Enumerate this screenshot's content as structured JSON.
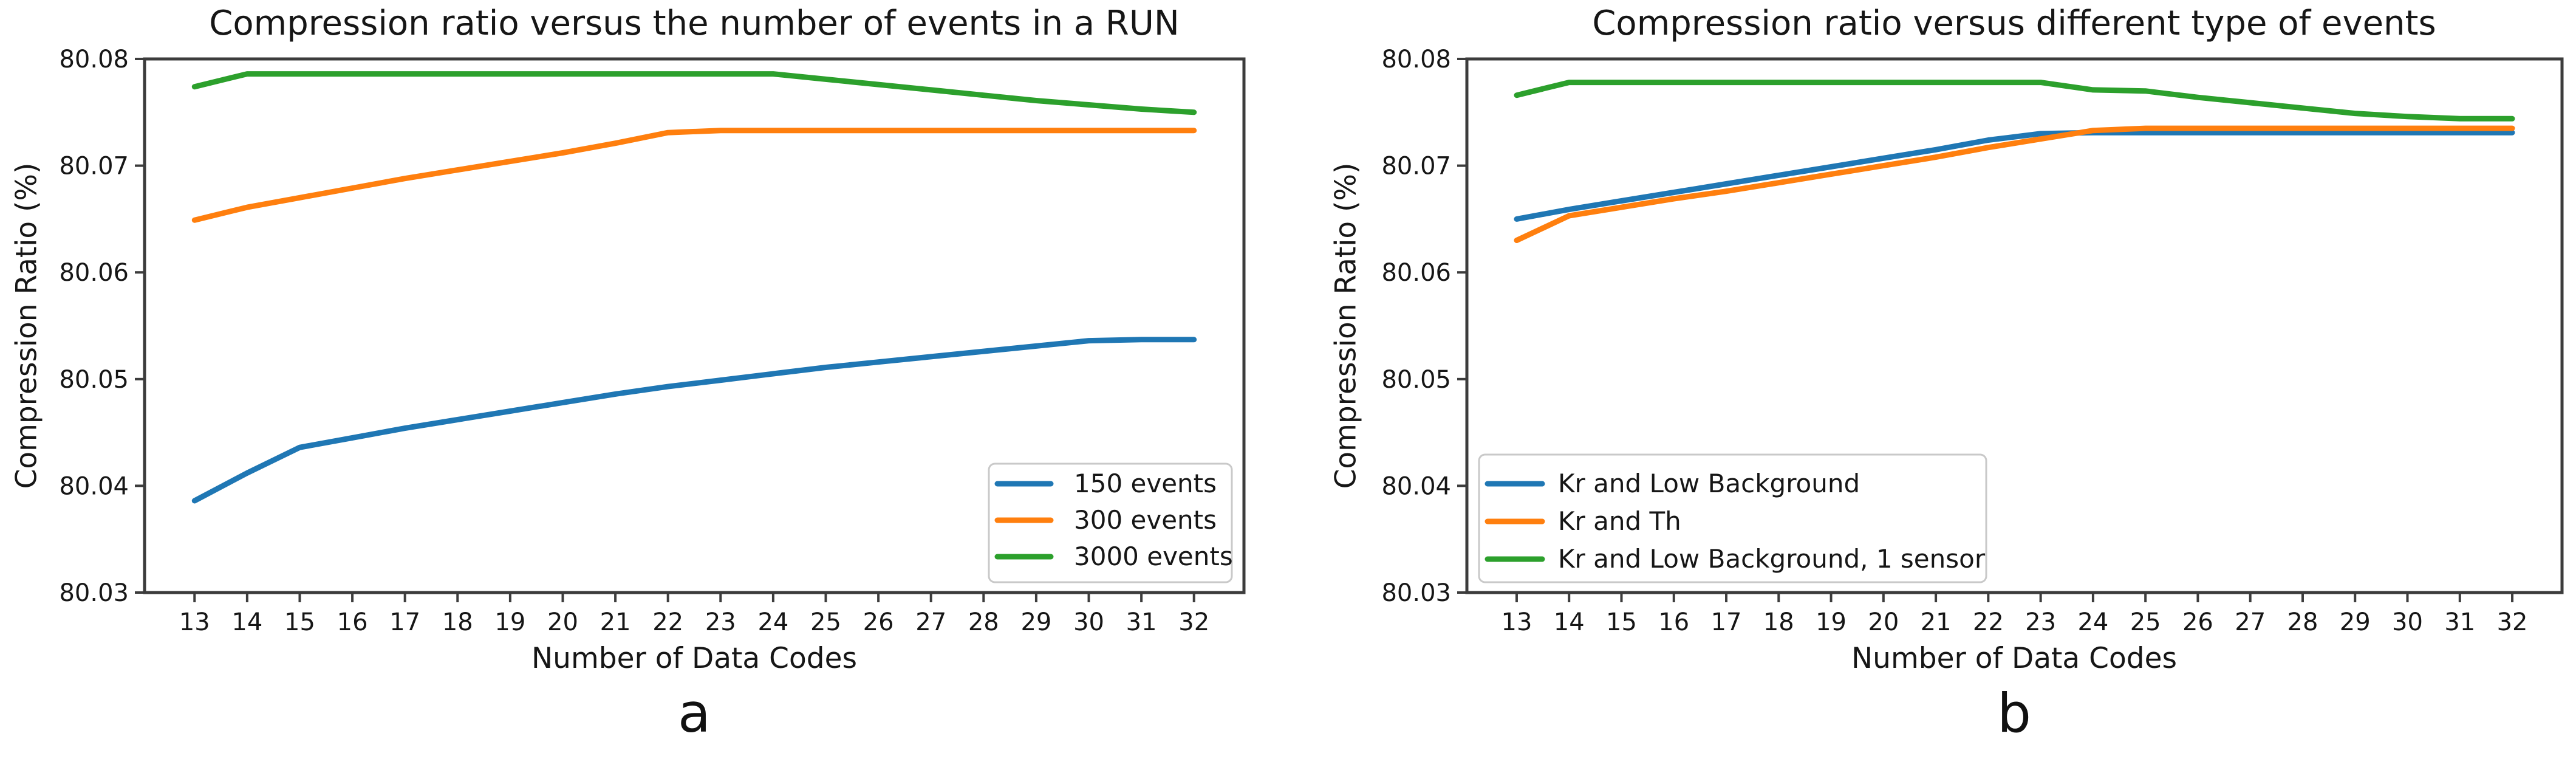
{
  "figure": {
    "background": "#ffffff",
    "text_color": "#161616",
    "axis_color": "#3c3c3c",
    "legend_border_color": "#c9c9c9",
    "accent_blue": "#1f77b4",
    "accent_orange": "#ff7f0e",
    "accent_green": "#2ca02c"
  },
  "chart_data": [
    {
      "id": "a",
      "type": "line",
      "title": "Compression ratio versus the number of events in a RUN",
      "xlabel": "Number of Data Codes",
      "ylabel": "Compression Ratio (%)",
      "caption": "a",
      "grid": false,
      "legend_position": "lower right",
      "x": [
        13,
        14,
        15,
        16,
        17,
        18,
        19,
        20,
        21,
        22,
        23,
        24,
        25,
        26,
        27,
        28,
        29,
        30,
        31,
        32
      ],
      "xlim": [
        12.05,
        32.95
      ],
      "ylim": [
        80.03,
        80.08
      ],
      "yticks": [
        80.03,
        80.04,
        80.05,
        80.06,
        80.07,
        80.08
      ],
      "series": [
        {
          "name": "150 events",
          "color": "#1f77b4",
          "values": [
            80.0386,
            80.0412,
            80.0436,
            80.0445,
            80.0454,
            80.0462,
            80.047,
            80.0478,
            80.0486,
            80.0493,
            80.0499,
            80.0505,
            80.0511,
            80.0516,
            80.0521,
            80.0526,
            80.0531,
            80.0536,
            80.0537,
            80.0537
          ]
        },
        {
          "name": "300 events",
          "color": "#ff7f0e",
          "values": [
            80.0649,
            80.0661,
            80.067,
            80.0679,
            80.0688,
            80.0696,
            80.0704,
            80.0712,
            80.0721,
            80.0731,
            80.0733,
            80.0733,
            80.0733,
            80.0733,
            80.0733,
            80.0733,
            80.0733,
            80.0733,
            80.0733,
            80.0733
          ]
        },
        {
          "name": "3000 events",
          "color": "#2ca02c",
          "values": [
            80.0774,
            80.0786,
            80.0786,
            80.0786,
            80.0786,
            80.0786,
            80.0786,
            80.0786,
            80.0786,
            80.0786,
            80.0786,
            80.0786,
            80.0781,
            80.0776,
            80.0771,
            80.0766,
            80.0761,
            80.0757,
            80.0753,
            80.075
          ]
        }
      ]
    },
    {
      "id": "b",
      "type": "line",
      "title": "Compression ratio versus different type of events",
      "xlabel": "Number of Data Codes",
      "ylabel": "Compression Ratio (%)",
      "caption": "b",
      "grid": false,
      "legend_position": "lower left",
      "x": [
        13,
        14,
        15,
        16,
        17,
        18,
        19,
        20,
        21,
        22,
        23,
        24,
        25,
        26,
        27,
        28,
        29,
        30,
        31,
        32
      ],
      "xlim": [
        12.05,
        32.95
      ],
      "ylim": [
        80.03,
        80.08
      ],
      "yticks": [
        80.03,
        80.04,
        80.05,
        80.06,
        80.07,
        80.08
      ],
      "series": [
        {
          "name": "Kr and Low Background",
          "color": "#1f77b4",
          "values": [
            80.065,
            80.0659,
            80.0667,
            80.0675,
            80.0683,
            80.0691,
            80.0699,
            80.0707,
            80.0715,
            80.0724,
            80.073,
            80.0731,
            80.0731,
            80.0731,
            80.0731,
            80.0731,
            80.0731,
            80.0731,
            80.0731,
            80.0731
          ]
        },
        {
          "name": "Kr and Th",
          "color": "#ff7f0e",
          "values": [
            80.063,
            80.0653,
            80.0661,
            80.0669,
            80.0676,
            80.0684,
            80.0692,
            80.07,
            80.0708,
            80.0717,
            80.0725,
            80.0733,
            80.0735,
            80.0735,
            80.0735,
            80.0735,
            80.0735,
            80.0735,
            80.0735,
            80.0735
          ]
        },
        {
          "name": "Kr and Low Background, 1 sensor",
          "color": "#2ca02c",
          "values": [
            80.0766,
            80.0778,
            80.0778,
            80.0778,
            80.0778,
            80.0778,
            80.0778,
            80.0778,
            80.0778,
            80.0778,
            80.0778,
            80.0771,
            80.077,
            80.0764,
            80.0759,
            80.0754,
            80.0749,
            80.0746,
            80.0744,
            80.0744
          ]
        }
      ]
    }
  ]
}
